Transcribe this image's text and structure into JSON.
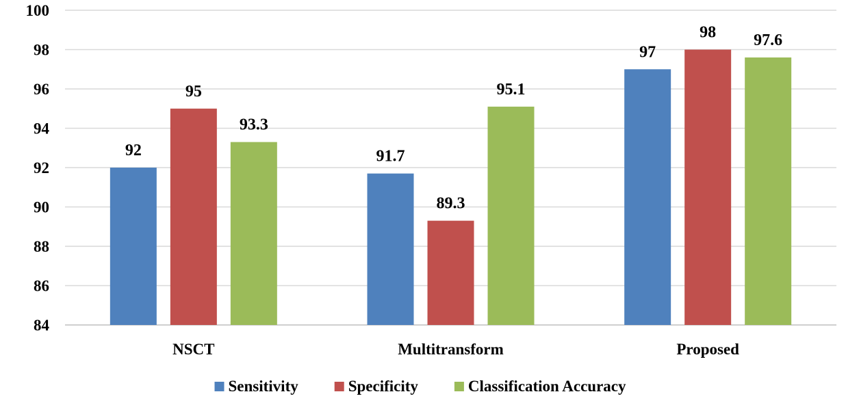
{
  "chart_data": {
    "type": "bar",
    "title": "",
    "xlabel": "",
    "ylabel": "",
    "ylim": [
      84,
      100
    ],
    "yticks": [
      84,
      86,
      88,
      90,
      92,
      94,
      96,
      98,
      100
    ],
    "grid": true,
    "legend_position": "bottom",
    "categories": [
      "NSCT",
      "Multitransform",
      "Proposed"
    ],
    "series": [
      {
        "name": "Sensitivity",
        "color": "#4f81bd",
        "values": [
          92,
          91.7,
          97
        ]
      },
      {
        "name": "Specificity",
        "color": "#c0504d",
        "values": [
          95,
          89.3,
          98
        ]
      },
      {
        "name": "Classification Accuracy",
        "color": "#9bbb59",
        "values": [
          93.3,
          95.1,
          97.6
        ]
      }
    ]
  }
}
